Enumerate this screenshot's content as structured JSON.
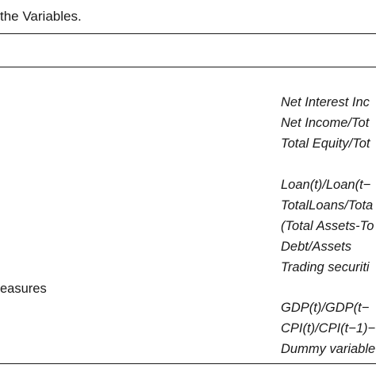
{
  "table": {
    "caption": "the Variables.",
    "left_column": {
      "measures_label": "easures"
    },
    "right_column": {
      "rows": [
        "Net Interest Inc",
        "Net Income/Tot",
        "Total Equity/Tot",
        "Loan(t)/Loan(t−",
        "TotalLoans/Tota",
        "(Total Assets-To",
        "Debt/Assets",
        "Trading securiti",
        "GDP(t)/GDP(t−",
        "CPI(t)/CPI(t−1)−",
        "Dummy variable"
      ]
    }
  }
}
